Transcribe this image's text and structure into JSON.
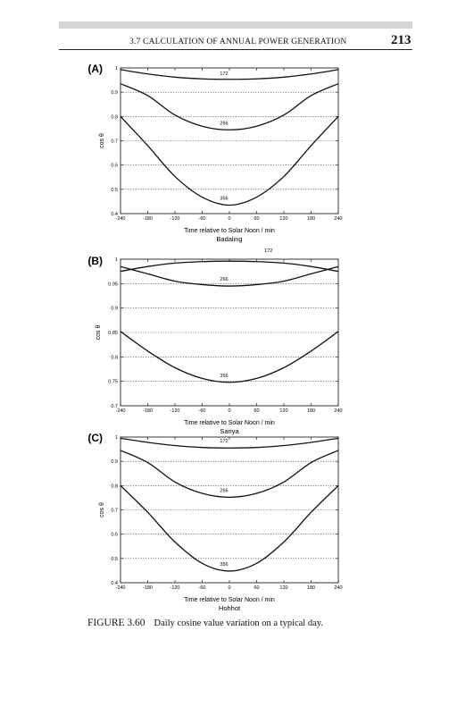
{
  "page": {
    "running_head": "3.7 CALCULATION OF ANNUAL POWER GENERATION",
    "page_number": "213",
    "caption_label": "FIGURE 3.60",
    "caption_text": "Daily cosine value variation on a typical day."
  },
  "chart_data": [
    {
      "type": "line",
      "panel": "(A)",
      "title": "Badaling",
      "title_position": "below-xlabel",
      "xlabel": "Time relative to Solar Noon / min",
      "ylabel": "cos θ",
      "xlim": [
        -240,
        240
      ],
      "ylim": [
        0.4,
        1
      ],
      "xticks": [
        -240,
        -180,
        -120,
        -60,
        0,
        60,
        120,
        180,
        240
      ],
      "yticks": [
        0.4,
        0.5,
        0.6,
        0.7,
        0.8,
        0.9,
        1
      ],
      "ytick_labels": [
        "0.4",
        "0.5",
        "0.6",
        "0.7",
        "0.8",
        "0.9",
        "1"
      ],
      "grid": "horizontal-dotted",
      "x": [
        -240,
        -180,
        -120,
        -60,
        0,
        60,
        120,
        180,
        240
      ],
      "series": [
        {
          "name": "172",
          "values": [
            0.993,
            0.975,
            0.962,
            0.955,
            0.953,
            0.955,
            0.962,
            0.975,
            0.993
          ]
        },
        {
          "name": "266",
          "values": [
            0.935,
            0.886,
            0.806,
            0.76,
            0.745,
            0.76,
            0.806,
            0.886,
            0.935
          ]
        },
        {
          "name": "356",
          "values": [
            0.8,
            0.68,
            0.553,
            0.468,
            0.435,
            0.468,
            0.553,
            0.68,
            0.8
          ]
        }
      ]
    },
    {
      "type": "line",
      "panel": "(B)",
      "title": "Sanya",
      "title_position": "below-xlabel",
      "xlabel": "Time relative to Solar Noon / min",
      "ylabel": "cos θ",
      "xlim": [
        -240,
        240
      ],
      "ylim": [
        0.7,
        1
      ],
      "xticks": [
        -240,
        -180,
        -120,
        -60,
        0,
        60,
        120,
        180,
        240
      ],
      "yticks": [
        0.7,
        0.75,
        0.8,
        0.85,
        0.9,
        0.95,
        1
      ],
      "ytick_labels": [
        "0.7",
        "0.75",
        "0.8",
        "0.85",
        "0.9",
        "0.95",
        "1"
      ],
      "grid": "horizontal-dotted",
      "x": [
        -240,
        -180,
        -120,
        -60,
        0,
        60,
        120,
        180,
        240
      ],
      "series": [
        {
          "name": "172",
          "values": [
            0.975,
            0.985,
            0.992,
            0.995,
            0.996,
            0.995,
            0.992,
            0.985,
            0.975
          ]
        },
        {
          "name": "266",
          "values": [
            0.985,
            0.97,
            0.955,
            0.948,
            0.945,
            0.948,
            0.955,
            0.97,
            0.985
          ]
        },
        {
          "name": "356",
          "values": [
            0.852,
            0.812,
            0.778,
            0.756,
            0.748,
            0.756,
            0.778,
            0.812,
            0.852
          ]
        }
      ]
    },
    {
      "type": "line",
      "panel": "(C)",
      "title": "Hohhot",
      "title_position": "below-xlabel",
      "xlabel": "Time relative to Solar Noon / min",
      "ylabel": "cos θ",
      "ylabel_display": "cos θ",
      "xlim": [
        -240,
        240
      ],
      "ylim": [
        0.4,
        1
      ],
      "xticks": [
        -240,
        -180,
        -120,
        -60,
        0,
        60,
        120,
        180,
        240
      ],
      "yticks": [
        0.4,
        0.5,
        0.6,
        0.7,
        0.8,
        0.9,
        1
      ],
      "ytick_labels": [
        "0.4",
        "0.5",
        "0.6",
        "0.7",
        "0.8",
        "0.9",
        "1"
      ],
      "grid": "horizontal-dotted",
      "x": [
        -240,
        -180,
        -120,
        -60,
        0,
        60,
        120,
        180,
        240
      ],
      "series": [
        {
          "name": "172",
          "values": [
            0.995,
            0.978,
            0.965,
            0.957,
            0.955,
            0.957,
            0.965,
            0.978,
            0.995
          ]
        },
        {
          "name": "266",
          "values": [
            0.945,
            0.895,
            0.815,
            0.768,
            0.752,
            0.768,
            0.815,
            0.895,
            0.945
          ]
        },
        {
          "name": "356",
          "values": [
            0.8,
            0.69,
            0.568,
            0.48,
            0.448,
            0.48,
            0.568,
            0.69,
            0.8
          ]
        }
      ]
    }
  ]
}
